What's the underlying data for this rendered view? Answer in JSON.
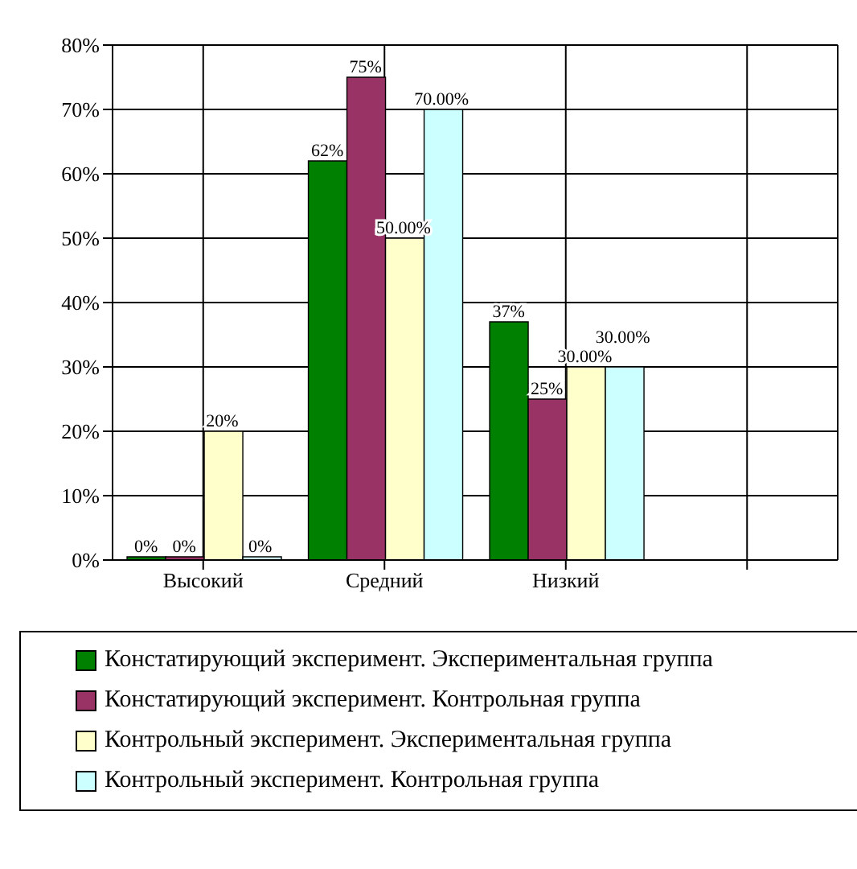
{
  "chart_data": {
    "type": "bar",
    "categories": [
      "Высокий",
      "Средний",
      "Низкий",
      null
    ],
    "series": [
      {
        "name": "Констатирующий эксперимент. Экспериментальная группа",
        "color": "#008000",
        "values": [
          0,
          62,
          37,
          null
        ],
        "value_labels": [
          "0%",
          "62%",
          "37%",
          null
        ]
      },
      {
        "name": "Констатирующий эксперимент. Контрольная группа",
        "color": "#993366",
        "values": [
          0,
          75,
          25,
          null
        ],
        "value_labels": [
          "0%",
          "75%",
          "25%",
          null
        ]
      },
      {
        "name": "Контрольный эксперимент. Экспериментальная группа",
        "color": "#ffffcc",
        "values": [
          20,
          50,
          30,
          null
        ],
        "value_labels": [
          "20%",
          "50.00%",
          "30.00%",
          null
        ]
      },
      {
        "name": "Контрольный эксперимент. Контрольная группа",
        "color": "#ccffff",
        "values": [
          0,
          70,
          30,
          null
        ],
        "value_labels": [
          "0%",
          "70.00%",
          "30.00%",
          null
        ]
      }
    ],
    "ylim": [
      0,
      80
    ],
    "yticks": [
      {
        "value": 0,
        "label": "0%"
      },
      {
        "value": 10,
        "label": "10%"
      },
      {
        "value": 20,
        "label": "20%"
      },
      {
        "value": 30,
        "label": "30%"
      },
      {
        "value": 40,
        "label": "40%"
      },
      {
        "value": 50,
        "label": "50%"
      },
      {
        "value": 60,
        "label": "60%"
      },
      {
        "value": 70,
        "label": "70%"
      },
      {
        "value": 80,
        "label": "80%"
      }
    ],
    "grid": true,
    "legend": "bottom"
  }
}
